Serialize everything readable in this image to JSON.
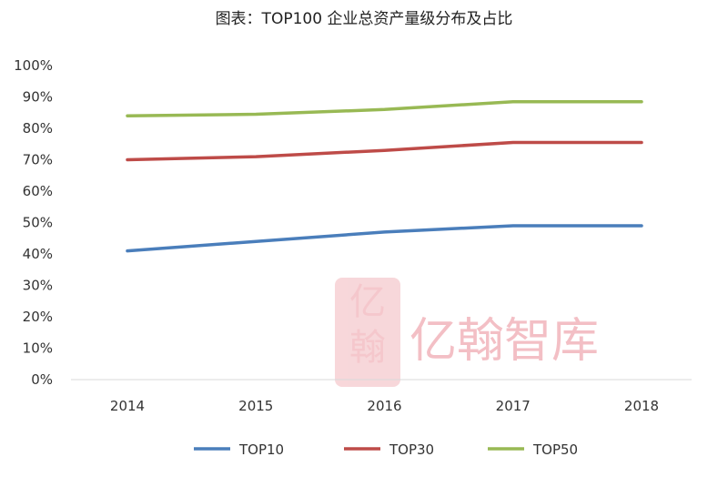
{
  "chart_data": {
    "type": "line",
    "title": "图表：TOP100 企业总资产量级分布及占比",
    "categories": [
      "2014",
      "2015",
      "2016",
      "2017",
      "2018"
    ],
    "series": [
      {
        "name": "TOP10",
        "color": "#4a7ebb",
        "values": [
          41,
          44,
          47,
          49,
          49
        ]
      },
      {
        "name": "TOP30",
        "color": "#be4b48",
        "values": [
          70,
          71,
          73,
          75.5,
          75.5
        ]
      },
      {
        "name": "TOP50",
        "color": "#98b954",
        "values": [
          84,
          84.5,
          86,
          88.5,
          88.5
        ]
      }
    ],
    "y_ticks": [
      "0%",
      "10%",
      "20%",
      "30%",
      "40%",
      "50%",
      "60%",
      "70%",
      "80%",
      "90%",
      "100%"
    ],
    "ylim": [
      0,
      100
    ],
    "xlabel": "",
    "ylabel": "",
    "legend_position": "bottom"
  },
  "watermark": {
    "text": "亿翰智库",
    "seal_chars": [
      "亿",
      "翰"
    ],
    "color": "#f2b9bf"
  }
}
